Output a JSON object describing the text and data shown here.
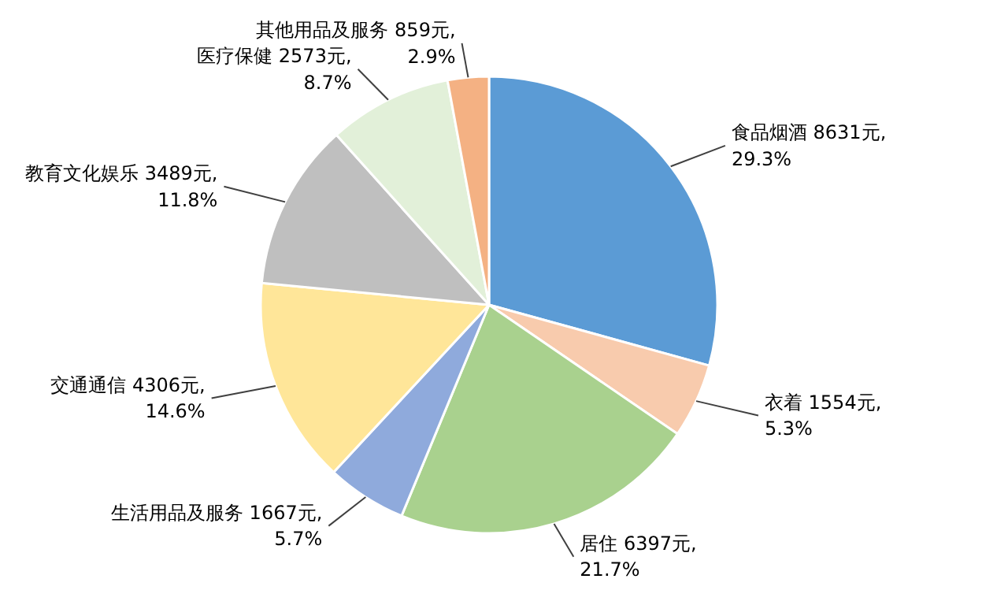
{
  "chart_data": {
    "type": "pie",
    "categories": [
      "食品烟酒",
      "衣着",
      "居住",
      "生活用品及服务",
      "交通通信",
      "教育文化娱乐",
      "医疗保健",
      "其他用品及服务"
    ],
    "values": [
      8631,
      1554,
      6397,
      1667,
      4306,
      3489,
      2573,
      859
    ],
    "value_labels": [
      "8631元,\n29.3%",
      "1554元,\n5.3%",
      "6397元,\n21.7%",
      "1667元,\n5.7%",
      "4306元,\n14.6%",
      "3489元,\n11.8%",
      "2573元,\n8.7%",
      "859元,\n2.9%"
    ],
    "colors": [
      "#5b9bd5",
      "#f8cbad",
      "#a9d18e",
      "#8faadc",
      "#ffe699",
      "#bfbfbf",
      "#e2f0d9",
      "#f4b183"
    ]
  }
}
